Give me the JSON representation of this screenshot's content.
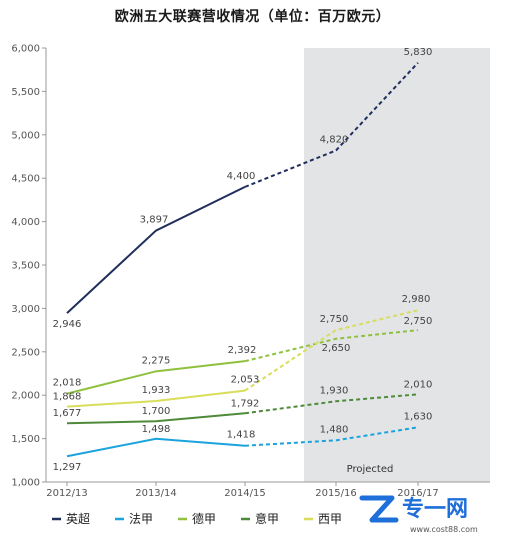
{
  "chart_data": {
    "type": "line",
    "title": "欧洲五大联赛营收情况（单位：百万欧元）",
    "categories": [
      "2012/13",
      "2013/14",
      "2014/15",
      "2015/16",
      "2016/17"
    ],
    "ylim": [
      1000,
      6000
    ],
    "yticks": [
      1000,
      1500,
      2000,
      2500,
      3000,
      3500,
      4000,
      4500,
      5000,
      5500,
      6000
    ],
    "ytick_labels": [
      "1,000",
      "1,500",
      "2,000",
      "2,500",
      "3,000",
      "3,500",
      "4,000",
      "4,500",
      "5,000",
      "5,500",
      "6,000"
    ],
    "projected_label": "Projected",
    "projected_from_index": 3,
    "grid": false,
    "legend_position": "bottom",
    "series": [
      {
        "name": "英超",
        "color": "#1f2f5c",
        "values": [
          2946,
          3897,
          4400,
          4820,
          5830
        ],
        "labels": [
          "2,946",
          "3,897",
          "4,400",
          "4,820",
          "5,830"
        ]
      },
      {
        "name": "法甲",
        "color": "#1aa3dc",
        "values": [
          1297,
          1498,
          1418,
          1480,
          1630
        ],
        "labels": [
          "1,297",
          "1,498",
          "1,418",
          "1,480",
          "1,630"
        ]
      },
      {
        "name": "德甲",
        "color": "#8fc13e",
        "values": [
          2018,
          2275,
          2392,
          2650,
          2750
        ],
        "labels": [
          "2,018",
          "2,275",
          "2,392",
          "2,650",
          "2,750"
        ]
      },
      {
        "name": "意甲",
        "color": "#4e8a3a",
        "values": [
          1677,
          1700,
          1792,
          1930,
          2010
        ],
        "labels": [
          "1,677",
          "1,700",
          "1,792",
          "1,930",
          "2,010"
        ]
      },
      {
        "name": "西甲",
        "color": "#d8dd5a",
        "values": [
          1868,
          1933,
          2053,
          2750,
          2980
        ],
        "labels": [
          "1,868",
          "1,933",
          "2,053",
          "2,750",
          "2,980"
        ]
      }
    ]
  },
  "watermark": {
    "brand": "专一网",
    "url": "www.cost88.com",
    "color": "#1e6fd9"
  }
}
